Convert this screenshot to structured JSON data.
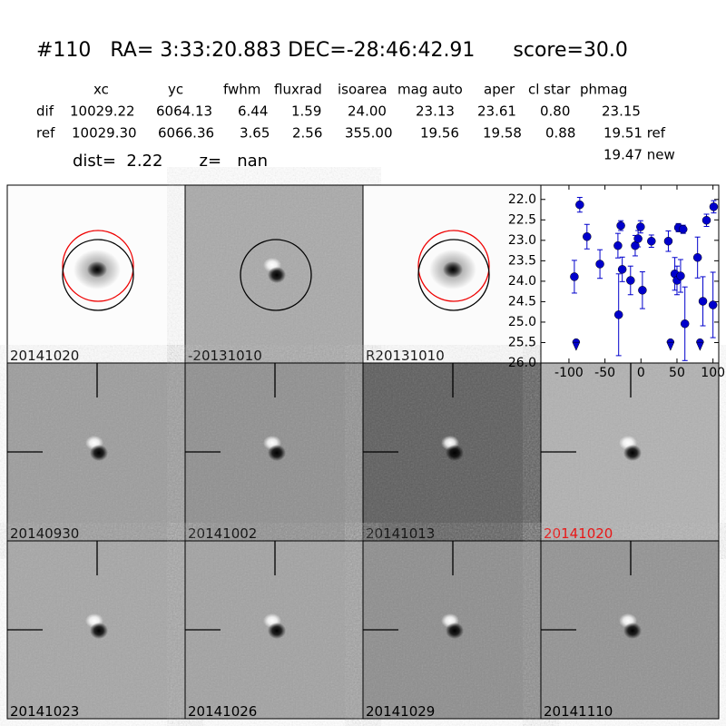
{
  "header": {
    "title": "#110   RA= 3:33:20.883 DEC=-28:46:42.91      score=30.0",
    "columns": [
      "xc",
      "yc",
      "fwhm",
      "fluxrad",
      "isoarea",
      "mag auto",
      "aper",
      "cl star",
      "phmag"
    ],
    "rows": [
      [
        "dif",
        "10029.22",
        "6064.13",
        "6.44",
        "1.59",
        "24.00",
        "23.13",
        "23.61",
        "0.80",
        "23.15"
      ],
      [
        "ref",
        "10029.30",
        "6066.36",
        "3.65",
        "2.56",
        "355.00",
        "19.56",
        "19.58",
        "0.88",
        "19.51 ref"
      ]
    ],
    "extra": "19.47 new",
    "dist": "dist=  2.22       z=   nan"
  },
  "panels": [
    "20141020",
    "-20131010",
    "R20131010",
    "20140930",
    "20141002",
    "20141013",
    "20141020",
    "20141023",
    "20141026",
    "20141029",
    "20141110"
  ],
  "chart_data": {
    "type": "scatter",
    "color": "#0000cc",
    "x": [
      -92.5,
      -85,
      -75,
      -57,
      -32,
      -31,
      -28,
      -26,
      -14.5,
      -8,
      -4,
      -0.6,
      2,
      14.5,
      38,
      47,
      50,
      52,
      55,
      58.5,
      61,
      78.6,
      86,
      91,
      101,
      100
    ],
    "values": [
      23.89,
      22.13,
      22.91,
      23.58,
      23.13,
      24.82,
      22.64,
      23.71,
      23.98,
      23.13,
      22.96,
      22.67,
      24.22,
      23.02,
      23.02,
      23.82,
      23.98,
      22.69,
      23.87,
      22.73,
      25.04,
      23.42,
      24.49,
      22.51,
      22.18,
      24.58
    ],
    "errors": [
      0.4,
      0.18,
      0.3,
      0.35,
      0.3,
      1.0,
      0.12,
      0.3,
      0.35,
      0.25,
      0.2,
      0.15,
      0.45,
      0.15,
      0.25,
      0.4,
      0.35,
      0.1,
      0.4,
      0.1,
      0.9,
      0.5,
      0.6,
      0.15,
      0.15,
      0.8
    ],
    "limits_x": [
      -90,
      41,
      82
    ],
    "limits_values": [
      25.56,
      25.56,
      25.56
    ],
    "xlim": [
      -139,
      108
    ],
    "ylim": [
      26.0,
      21.65
    ],
    "xticks": [
      -100,
      -50,
      0,
      50,
      100
    ],
    "yticks": [
      {
        "value": 22,
        "label": "22.0"
      },
      22.5,
      {
        "value": 23,
        "label": "23.0"
      },
      23.5,
      {
        "value": 24,
        "label": "24.0"
      },
      24.5,
      {
        "value": 25,
        "label": "25.0"
      },
      25.5,
      {
        "value": 26,
        "label": "26.0"
      }
    ]
  }
}
